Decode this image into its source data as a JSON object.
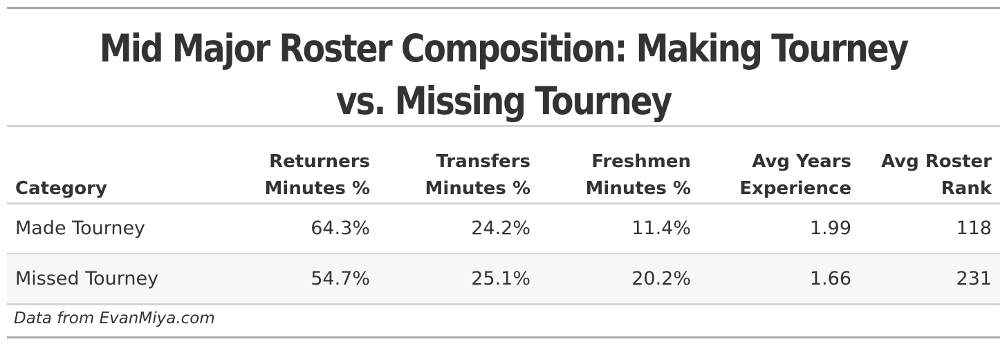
{
  "chart_data": {
    "type": "table",
    "title": "Mid Major Roster Composition: Making Tourney vs. Missing Tourney",
    "columns": [
      [
        "Category"
      ],
      [
        "Returners",
        "Minutes %"
      ],
      [
        "Transfers",
        "Minutes %"
      ],
      [
        "Freshmen",
        "Minutes %"
      ],
      [
        "Avg Years",
        "Experience"
      ],
      [
        "Avg Roster",
        "Rank"
      ]
    ],
    "rows": [
      [
        "Made Tourney",
        "64.3%",
        "24.2%",
        "11.4%",
        "1.99",
        "118"
      ],
      [
        "Missed Tourney",
        "54.7%",
        "25.1%",
        "20.2%",
        "1.66",
        "231"
      ]
    ],
    "footnote": "Data from EvanMiya.com"
  },
  "colors": {
    "text": "#333333",
    "rule_outer": "#a8a8a8",
    "rule_inner": "#d3d3d3",
    "row_alt_background": "#f7f7f7"
  }
}
